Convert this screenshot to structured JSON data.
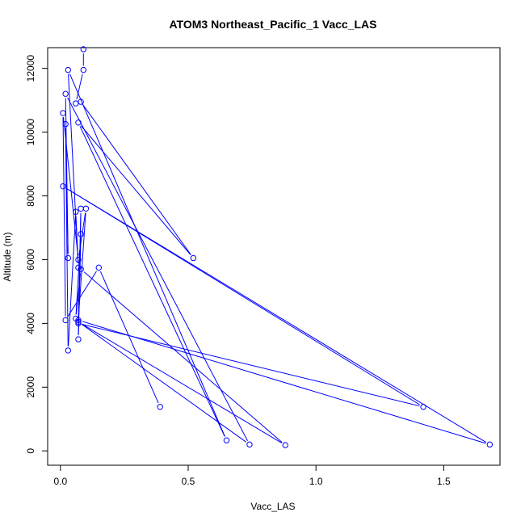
{
  "chart_data": {
    "type": "line",
    "title": "ATOM3 Northeast_Pacific_1 Vacc_LAS",
    "xlabel": "Vacc_LAS",
    "ylabel": "Altitude (m)",
    "xlim": [
      -0.05,
      1.72
    ],
    "ylim": [
      -450,
      12650
    ],
    "x_ticks": [
      0.0,
      0.5,
      1.0,
      1.5
    ],
    "x_tick_labels": [
      "0.0",
      "0.5",
      "1.0",
      "1.5"
    ],
    "y_ticks": [
      0,
      2000,
      4000,
      6000,
      8000,
      10000,
      12000
    ],
    "y_tick_labels": [
      "0",
      "2000",
      "4000",
      "6000",
      "8000",
      "10000",
      "12000"
    ],
    "grid": false,
    "legend": "none",
    "series": [
      {
        "color": "#0000ff",
        "marker": "open-circle",
        "points": [
          {
            "x": 0.09,
            "y": 12600
          },
          {
            "x": 0.09,
            "y": 11950
          },
          {
            "x": 0.06,
            "y": 10900
          },
          {
            "x": 0.08,
            "y": 10950
          },
          {
            "x": 0.52,
            "y": 6050
          },
          {
            "x": 0.07,
            "y": 10300
          },
          {
            "x": 0.65,
            "y": 330
          },
          {
            "x": 0.03,
            "y": 11950
          },
          {
            "x": 0.07,
            "y": 5750
          },
          {
            "x": 0.06,
            "y": 7500
          },
          {
            "x": 0.03,
            "y": 3150
          },
          {
            "x": 0.02,
            "y": 10250
          },
          {
            "x": 0.03,
            "y": 6050
          },
          {
            "x": 0.02,
            "y": 11200
          },
          {
            "x": 0.74,
            "y": 200
          },
          {
            "x": 0.07,
            "y": 4050
          },
          {
            "x": 0.88,
            "y": 180
          },
          {
            "x": 0.08,
            "y": 5700
          },
          {
            "x": 0.06,
            "y": 4150
          },
          {
            "x": 0.08,
            "y": 6800
          },
          {
            "x": 0.07,
            "y": 3500
          },
          {
            "x": 0.08,
            "y": 7600
          },
          {
            "x": 0.07,
            "y": 4000
          },
          {
            "x": 1.42,
            "y": 1380
          },
          {
            "x": 0.01,
            "y": 8300
          },
          {
            "x": 1.68,
            "y": 200
          },
          {
            "x": 0.07,
            "y": 4100
          },
          {
            "x": 0.1,
            "y": 7600
          },
          {
            "x": 0.07,
            "y": 6000
          },
          {
            "x": 0.01,
            "y": 10600
          },
          {
            "x": 0.02,
            "y": 4100
          },
          {
            "x": 0.15,
            "y": 5750
          },
          {
            "x": 0.39,
            "y": 1380
          }
        ]
      }
    ]
  }
}
